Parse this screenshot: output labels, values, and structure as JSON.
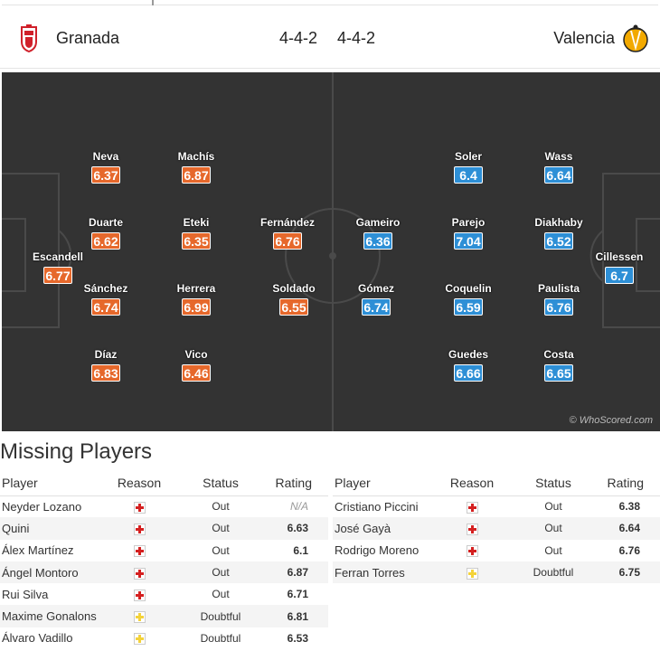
{
  "header": {
    "home_team": "Granada",
    "away_team": "Valencia",
    "home_formation": "4-4-2",
    "away_formation": "4-4-2"
  },
  "pitch": {
    "watermark": "© WhoScored.com",
    "home_players": [
      {
        "name": "Escandell",
        "rating": "6.77"
      },
      {
        "name": "Neva",
        "rating": "6.37"
      },
      {
        "name": "Duarte",
        "rating": "6.62"
      },
      {
        "name": "Sánchez",
        "rating": "6.74"
      },
      {
        "name": "Díaz",
        "rating": "6.83"
      },
      {
        "name": "Machís",
        "rating": "6.87"
      },
      {
        "name": "Eteki",
        "rating": "6.35"
      },
      {
        "name": "Herrera",
        "rating": "6.99"
      },
      {
        "name": "Vico",
        "rating": "6.46"
      },
      {
        "name": "Fernández",
        "rating": "6.76"
      },
      {
        "name": "Soldado",
        "rating": "6.55"
      }
    ],
    "away_players": [
      {
        "name": "Cillessen",
        "rating": "6.7"
      },
      {
        "name": "Wass",
        "rating": "6.64"
      },
      {
        "name": "Diakhaby",
        "rating": "6.52"
      },
      {
        "name": "Paulista",
        "rating": "6.76"
      },
      {
        "name": "Costa",
        "rating": "6.65"
      },
      {
        "name": "Soler",
        "rating": "6.4"
      },
      {
        "name": "Parejo",
        "rating": "7.04"
      },
      {
        "name": "Coquelin",
        "rating": "6.59"
      },
      {
        "name": "Guedes",
        "rating": "6.66"
      },
      {
        "name": "Gameiro",
        "rating": "6.36"
      },
      {
        "name": "Gómez",
        "rating": "6.74"
      }
    ]
  },
  "missing": {
    "title": "Missing Players",
    "columns": {
      "player": "Player",
      "reason": "Reason",
      "status": "Status",
      "rating": "Rating"
    },
    "home": [
      {
        "player": "Neyder Lozano",
        "reason": "injury",
        "status": "Out",
        "rating": "N/A"
      },
      {
        "player": "Quini",
        "reason": "injury",
        "status": "Out",
        "rating": "6.63"
      },
      {
        "player": "Álex Martínez",
        "reason": "injury",
        "status": "Out",
        "rating": "6.1"
      },
      {
        "player": "Ángel Montoro",
        "reason": "injury",
        "status": "Out",
        "rating": "6.87"
      },
      {
        "player": "Rui Silva",
        "reason": "injury",
        "status": "Out",
        "rating": "6.71"
      },
      {
        "player": "Maxime Gonalons",
        "reason": "doubtful",
        "status": "Doubtful",
        "rating": "6.81"
      },
      {
        "player": "Álvaro Vadillo",
        "reason": "doubtful",
        "status": "Doubtful",
        "rating": "6.53"
      }
    ],
    "away": [
      {
        "player": "Cristiano Piccini",
        "reason": "injury",
        "status": "Out",
        "rating": "6.38"
      },
      {
        "player": "José Gayà",
        "reason": "injury",
        "status": "Out",
        "rating": "6.64"
      },
      {
        "player": "Rodrigo Moreno",
        "reason": "injury",
        "status": "Out",
        "rating": "6.76"
      },
      {
        "player": "Ferran Torres",
        "reason": "doubtful",
        "status": "Doubtful",
        "rating": "6.75"
      }
    ]
  },
  "colors": {
    "pitch": "#333333",
    "home_rating": "#e6682b",
    "away_rating": "#2d8fd6",
    "missing_rating": "#d65a1a"
  }
}
